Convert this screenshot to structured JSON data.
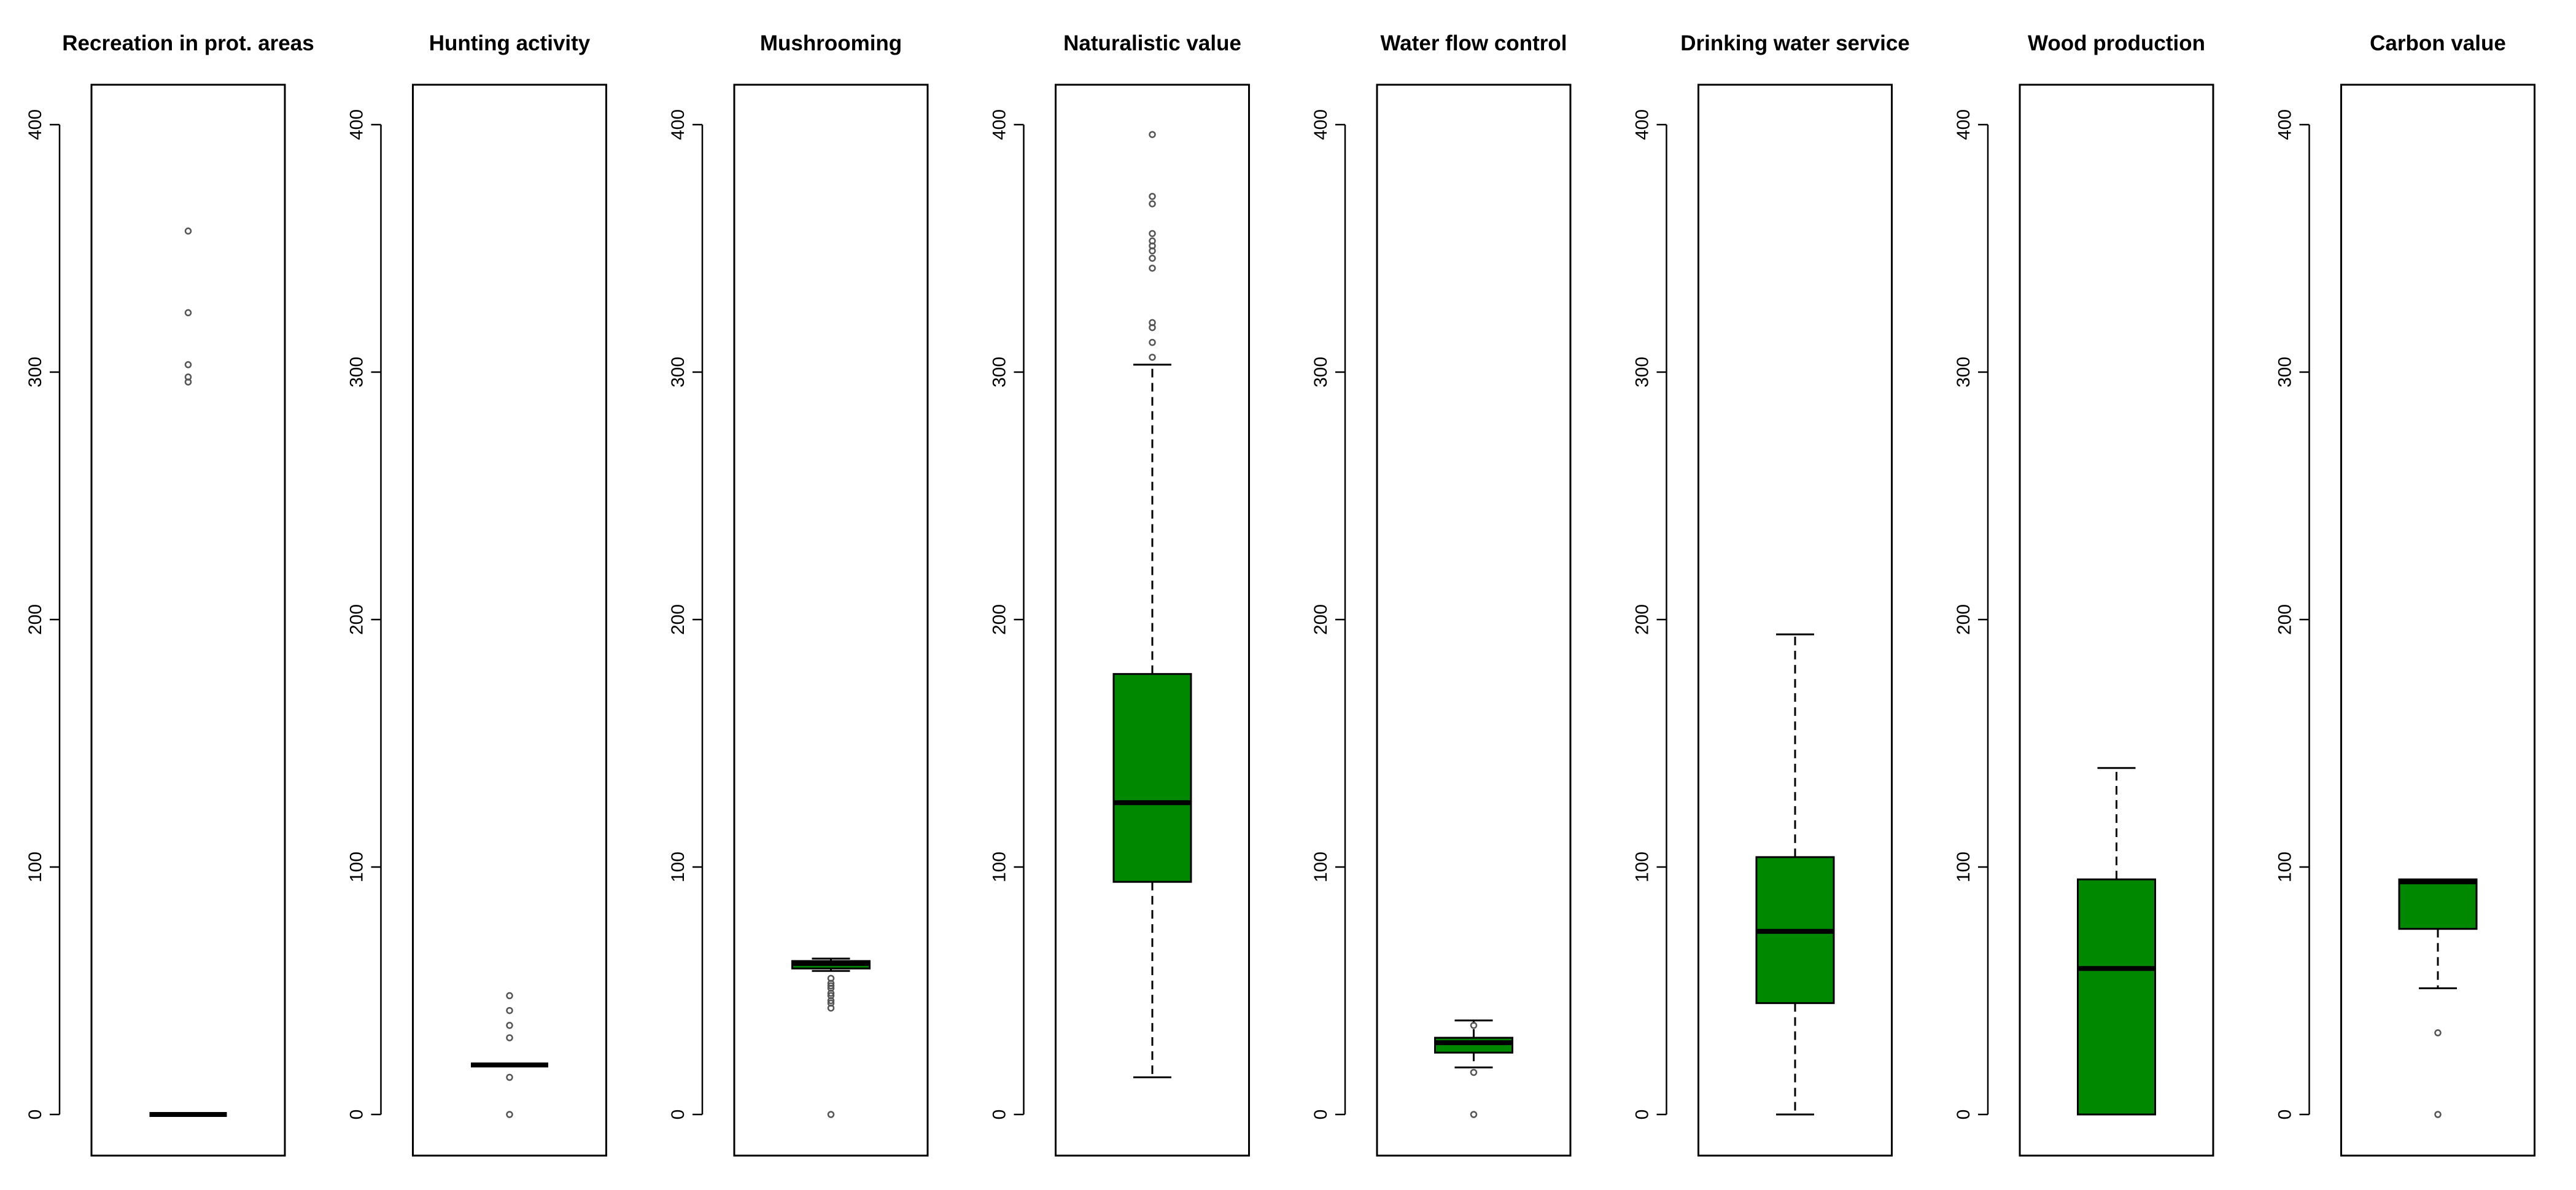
{
  "chart_data": {
    "type": "box",
    "ylim": [
      0,
      400
    ],
    "y_ticks": [
      "0",
      "100",
      "200",
      "300",
      "400"
    ],
    "grid": false,
    "box_color": "#008800",
    "median_color": "#000000",
    "panels": [
      {
        "title": "Recreation in prot. areas",
        "whisker_low": 0,
        "q1": 0,
        "median": 0,
        "q3": 0,
        "whisker_high": 0,
        "outliers": [
          296,
          298,
          303,
          324,
          357
        ]
      },
      {
        "title": "Hunting activity",
        "whisker_low": 20,
        "q1": 20,
        "median": 20,
        "q3": 20,
        "whisker_high": 20,
        "outliers": [
          0,
          15,
          31,
          36,
          42,
          48
        ]
      },
      {
        "title": "Mushrooming",
        "whisker_low": 58,
        "q1": 59,
        "median": 61,
        "q3": 62,
        "whisker_high": 63,
        "outliers": [
          0,
          43,
          45,
          46,
          48,
          49,
          51,
          52,
          53,
          55
        ]
      },
      {
        "title": "Naturalistic value",
        "whisker_low": 15,
        "q1": 94,
        "median": 126,
        "q3": 178,
        "whisker_high": 303,
        "outliers": [
          306,
          312,
          318,
          320,
          342,
          346,
          349,
          351,
          353,
          356,
          368,
          371,
          396
        ]
      },
      {
        "title": "Water flow control",
        "whisker_low": 19,
        "q1": 25,
        "median": 29,
        "q3": 31,
        "whisker_high": 38,
        "outliers": [
          0,
          17,
          36
        ]
      },
      {
        "title": "Drinking water service",
        "whisker_low": 0,
        "q1": 45,
        "median": 74,
        "q3": 104,
        "whisker_high": 194,
        "outliers": []
      },
      {
        "title": "Wood production",
        "whisker_low": 0,
        "q1": 0,
        "median": 59,
        "q3": 95,
        "whisker_high": 140,
        "outliers": []
      },
      {
        "title": "Carbon value",
        "whisker_low": 51,
        "q1": 75,
        "median": 94,
        "q3": 95,
        "whisker_high": 95,
        "outliers": [
          0,
          33
        ]
      }
    ]
  }
}
